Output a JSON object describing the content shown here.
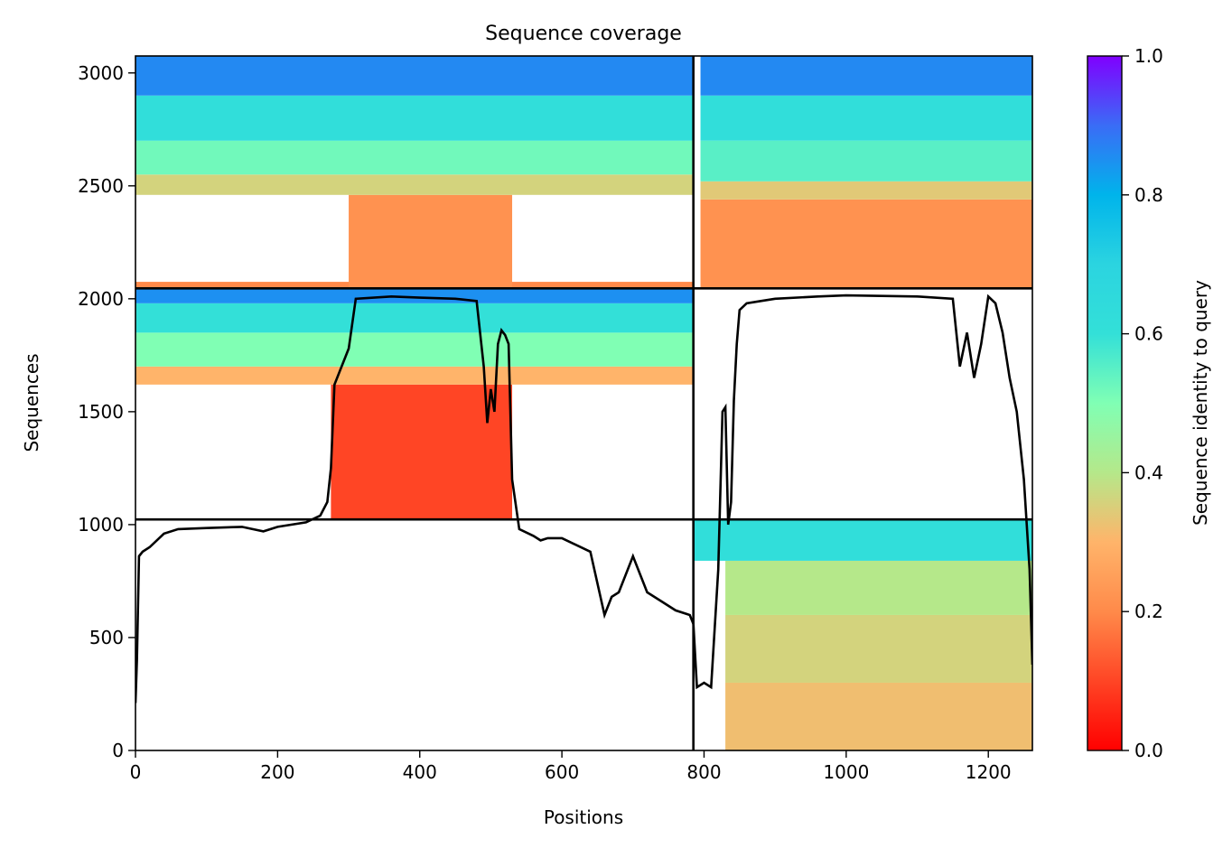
{
  "chart_data": {
    "type": "heatmap",
    "title": "Sequence coverage",
    "xlabel": "Positions",
    "ylabel": "Sequences",
    "xlim": [
      0,
      1262
    ],
    "ylim": [
      0,
      3075
    ],
    "xticks": [
      "0",
      "200",
      "400",
      "600",
      "800",
      "1000",
      "1200"
    ],
    "yticks": [
      "0",
      "500",
      "1000",
      "1500",
      "2000",
      "2500",
      "3000"
    ],
    "colorbar": {
      "label": "Sequence identity to query",
      "range": [
        0,
        1
      ],
      "ticks": [
        "0.0",
        "0.2",
        "0.4",
        "0.6",
        "0.8",
        "1.0"
      ],
      "colormap": "rainbow"
    },
    "segment_boundaries": {
      "vertical": [
        785
      ],
      "horizontal": [
        1023,
        2046
      ]
    },
    "coverage_blocks": [
      {
        "x": [
          0,
          785
        ],
        "y": [
          2046,
          2075
        ],
        "identity": 0.2
      },
      {
        "x": [
          300,
          530
        ],
        "y": [
          2050,
          2460
        ],
        "identity": 0.22
      },
      {
        "x": [
          0,
          785
        ],
        "y": [
          2460,
          2550
        ],
        "identity": 0.36
      },
      {
        "x": [
          0,
          785
        ],
        "y": [
          2550,
          2700
        ],
        "identity": 0.52
      },
      {
        "x": [
          0,
          785
        ],
        "y": [
          2700,
          2900
        ],
        "identity": 0.62
      },
      {
        "x": [
          0,
          785
        ],
        "y": [
          2900,
          3075
        ],
        "identity": 0.86
      },
      {
        "x": [
          795,
          1262
        ],
        "y": [
          2050,
          2440
        ],
        "identity": 0.22
      },
      {
        "x": [
          795,
          1262
        ],
        "y": [
          2440,
          2520
        ],
        "identity": 0.34
      },
      {
        "x": [
          795,
          1262
        ],
        "y": [
          2520,
          2700
        ],
        "identity": 0.55
      },
      {
        "x": [
          795,
          1262
        ],
        "y": [
          2700,
          2900
        ],
        "identity": 0.62
      },
      {
        "x": [
          795,
          1262
        ],
        "y": [
          2900,
          3075
        ],
        "identity": 0.86
      },
      {
        "x": [
          275,
          530
        ],
        "y": [
          1023,
          1620
        ],
        "identity": 0.1
      },
      {
        "x": [
          0,
          785
        ],
        "y": [
          1620,
          1700
        ],
        "identity": 0.3
      },
      {
        "x": [
          0,
          785
        ],
        "y": [
          1700,
          1850
        ],
        "identity": 0.5
      },
      {
        "x": [
          0,
          785
        ],
        "y": [
          1850,
          1980
        ],
        "identity": 0.6
      },
      {
        "x": [
          0,
          785
        ],
        "y": [
          1980,
          2046
        ],
        "identity": 0.85
      },
      {
        "x": [
          830,
          1262
        ],
        "y": [
          0,
          300
        ],
        "identity": 0.32
      },
      {
        "x": [
          830,
          1262
        ],
        "y": [
          300,
          600
        ],
        "identity": 0.36
      },
      {
        "x": [
          830,
          1262
        ],
        "y": [
          600,
          840
        ],
        "identity": 0.4
      },
      {
        "x": [
          785,
          1262
        ],
        "y": [
          840,
          1023
        ],
        "identity": 0.62
      }
    ],
    "coverage_line": {
      "name": "coverage",
      "x": [
        0,
        2,
        5,
        10,
        20,
        40,
        60,
        100,
        150,
        180,
        200,
        240,
        260,
        270,
        275,
        280,
        290,
        300,
        310,
        360,
        400,
        450,
        480,
        490,
        495,
        500,
        505,
        510,
        515,
        520,
        525,
        530,
        540,
        560,
        570,
        580,
        600,
        640,
        660,
        670,
        680,
        700,
        720,
        740,
        760,
        780,
        785,
        790,
        800,
        810,
        820,
        826,
        830,
        834,
        838,
        842,
        846,
        850,
        860,
        880,
        900,
        960,
        1000,
        1100,
        1150,
        1160,
        1170,
        1180,
        1190,
        1200,
        1210,
        1220,
        1230,
        1240,
        1250,
        1258,
        1262
      ],
      "y": [
        210,
        400,
        860,
        880,
        900,
        960,
        980,
        985,
        990,
        970,
        990,
        1010,
        1040,
        1100,
        1250,
        1620,
        1700,
        1780,
        2000,
        2010,
        2005,
        2000,
        1990,
        1700,
        1450,
        1600,
        1500,
        1800,
        1860,
        1840,
        1800,
        1200,
        980,
        950,
        930,
        940,
        940,
        880,
        600,
        680,
        700,
        860,
        700,
        660,
        620,
        600,
        560,
        280,
        300,
        280,
        800,
        1500,
        1520,
        1000,
        1100,
        1550,
        1800,
        1950,
        1980,
        1990,
        2000,
        2010,
        2015,
        2010,
        2000,
        1700,
        1850,
        1650,
        1800,
        2010,
        1980,
        1850,
        1650,
        1500,
        1200,
        800,
        380
      ]
    }
  }
}
